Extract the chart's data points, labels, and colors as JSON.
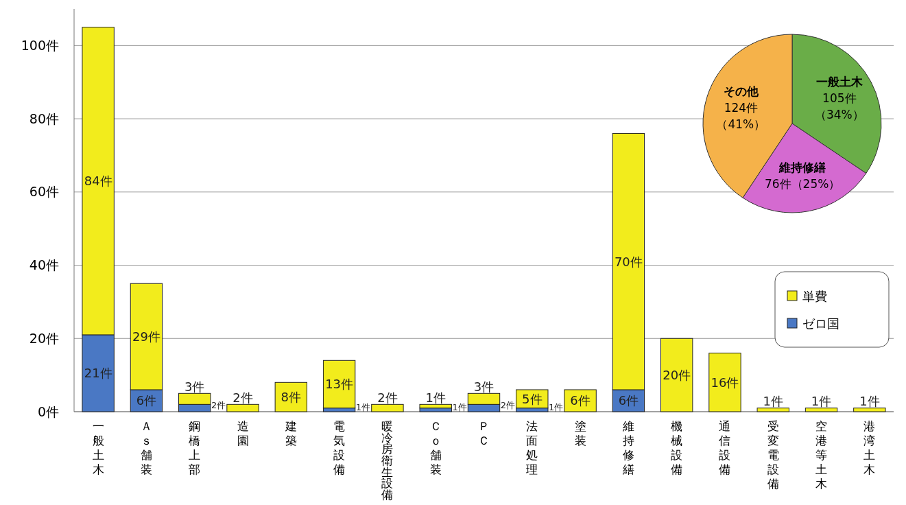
{
  "chart_data": [
    {
      "type": "bar",
      "stacked": true,
      "categories": [
        "一般土木",
        "Ａｓ舗装",
        "鋼橋上部",
        "造園",
        "建築",
        "電気設備",
        "暖冷房衛生設備",
        "Ｃｏ舗装",
        "ＰＣ",
        "法面処理",
        "塗装",
        "維持修繕",
        "機械設備",
        "通信設備",
        "受変電設備",
        "空港等土木",
        "港湾土木"
      ],
      "series": [
        {
          "name": "ゼロ国",
          "color": "#4a78c4",
          "values": [
            21,
            6,
            2,
            0,
            0,
            1,
            0,
            1,
            2,
            1,
            0,
            6,
            0,
            0,
            0,
            0,
            0
          ],
          "value_labels": [
            "21件",
            "6件",
            "2件",
            null,
            null,
            "1件",
            null,
            "1件",
            "2件",
            "1件",
            null,
            "6件",
            null,
            null,
            null,
            null,
            null
          ]
        },
        {
          "name": "単費",
          "color": "#f2ec1c",
          "values": [
            84,
            29,
            3,
            2,
            8,
            13,
            2,
            1,
            3,
            5,
            6,
            70,
            20,
            16,
            1,
            1,
            1
          ],
          "value_labels": [
            "84件",
            "29件",
            "3件",
            "2件",
            "8件",
            "13件",
            "2件",
            "1件",
            "3件",
            "5件",
            "6件",
            "70件",
            "20件",
            "16件",
            "1件",
            "1件",
            "1件"
          ]
        }
      ],
      "ylim": [
        0,
        110
      ],
      "yticks": [
        {
          "value": 0,
          "label": "0件"
        },
        {
          "value": 20,
          "label": "20件"
        },
        {
          "value": 40,
          "label": "40件"
        },
        {
          "value": 60,
          "label": "60件"
        },
        {
          "value": 80,
          "label": "80件"
        },
        {
          "value": 100,
          "label": "100件"
        }
      ],
      "grid": "y",
      "legend": "right"
    },
    {
      "type": "pie",
      "categories": [
        "一般土木",
        "維持修繕",
        "その他"
      ],
      "values": [
        105,
        76,
        124
      ],
      "colors": [
        "#6aad48",
        "#d46ad0",
        "#f5b24a"
      ],
      "value_labels": [
        "105件（34%）",
        "76件（25%）",
        "124件（41%）"
      ]
    }
  ]
}
